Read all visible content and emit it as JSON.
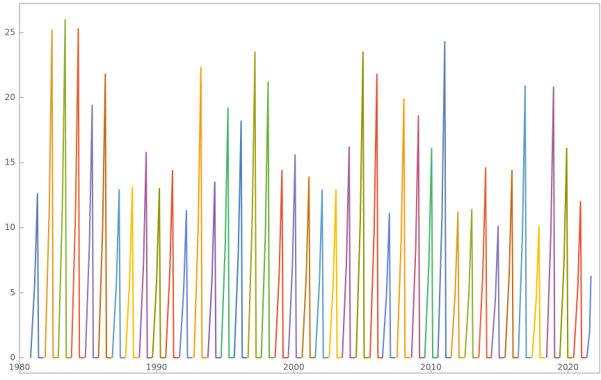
{
  "chart_data": {
    "type": "line",
    "xlim": [
      1980,
      2022.3
    ],
    "ylim": [
      -1.18,
      27.24
    ],
    "xticks": [
      1980,
      1990,
      2000,
      2010,
      2020
    ],
    "yticks": [
      0,
      5,
      10,
      15,
      20,
      25
    ],
    "grid": false,
    "series": [
      {
        "color": "#5e81b5",
        "x": [
          1980.81,
          1981.11,
          1981.31,
          1981.39,
          1981.76
        ],
        "values": [
          0,
          5.7,
          12.6,
          0,
          0
        ]
      },
      {
        "color": "#e19c24",
        "x": [
          1981.87,
          1982.17,
          1982.37,
          1982.45,
          1982.82
        ],
        "values": [
          0,
          11.3,
          25.2,
          0,
          0
        ]
      },
      {
        "color": "#8fb032",
        "x": [
          1982.83,
          1983.13,
          1983.33,
          1983.41,
          1983.78
        ],
        "values": [
          0,
          11.7,
          26,
          0,
          0
        ]
      },
      {
        "color": "#eb6235",
        "x": [
          1983.79,
          1984.09,
          1984.29,
          1984.37,
          1984.74
        ],
        "values": [
          0,
          11.4,
          25.3,
          0,
          0
        ]
      },
      {
        "color": "#8778b3",
        "x": [
          1984.8,
          1985.1,
          1985.3,
          1985.38,
          1985.75
        ],
        "values": [
          0,
          8.7,
          19.4,
          0,
          0
        ]
      },
      {
        "color": "#c56e1a",
        "x": [
          1985.76,
          1986.06,
          1986.26,
          1986.34,
          1986.71
        ],
        "values": [
          0,
          9.8,
          21.8,
          0,
          0
        ]
      },
      {
        "color": "#5d9ec7",
        "x": [
          1986.77,
          1987.07,
          1987.27,
          1987.35,
          1987.72
        ],
        "values": [
          0,
          5.8,
          12.9,
          0,
          0
        ]
      },
      {
        "color": "#ffbf00",
        "x": [
          1987.73,
          1988.03,
          1988.23,
          1988.31,
          1988.68
        ],
        "values": [
          0,
          5.9,
          13.1,
          0,
          0
        ]
      },
      {
        "color": "#a5609d",
        "x": [
          1988.74,
          1989.04,
          1989.24,
          1989.32,
          1989.69
        ],
        "values": [
          0,
          7.1,
          15.8,
          0,
          0
        ]
      },
      {
        "color": "#929600",
        "x": [
          1989.7,
          1990,
          1990.2,
          1990.28,
          1990.65
        ],
        "values": [
          0,
          5.9,
          13,
          0,
          0
        ]
      },
      {
        "color": "#e95536",
        "x": [
          1990.66,
          1990.96,
          1991.16,
          1991.24,
          1991.61
        ],
        "values": [
          0,
          6.5,
          14.4,
          0,
          0
        ]
      },
      {
        "color": "#6685d9",
        "x": [
          1991.67,
          1991.97,
          1992.17,
          1992.25,
          1992.62
        ],
        "values": [
          0,
          5.1,
          11.3,
          0,
          0
        ]
      },
      {
        "color": "#f89f13",
        "x": [
          1992.73,
          1993.03,
          1993.23,
          1993.31,
          1993.68
        ],
        "values": [
          0,
          10,
          22.3,
          0,
          0
        ]
      },
      {
        "color": "#8c62a8",
        "x": [
          1993.74,
          1994.04,
          1994.24,
          1994.32,
          1994.69
        ],
        "values": [
          0,
          6.1,
          13.5,
          0,
          0
        ]
      },
      {
        "color": "#47b66d",
        "x": [
          1994.7,
          1995,
          1995.2,
          1995.28,
          1995.65
        ],
        "values": [
          0,
          8.6,
          19.2,
          0,
          0
        ]
      },
      {
        "color": "#4d7fc0",
        "x": [
          1995.66,
          1995.96,
          1996.16,
          1996.24,
          1996.61
        ],
        "values": [
          0,
          8.2,
          18.2,
          0,
          0
        ]
      },
      {
        "color": "#a3a21a",
        "x": [
          1996.67,
          1996.97,
          1997.17,
          1997.25,
          1997.62
        ],
        "values": [
          0,
          10.6,
          23.5,
          0,
          0
        ]
      },
      {
        "color": "#6bb33c",
        "x": [
          1997.63,
          1997.93,
          1998.13,
          1998.21,
          1998.58
        ],
        "values": [
          0,
          9.5,
          21.2,
          0,
          0
        ]
      },
      {
        "color": "#e95536",
        "x": [
          1998.64,
          1998.94,
          1999.14,
          1999.22,
          1999.59
        ],
        "values": [
          0,
          6.5,
          14.4,
          0,
          0
        ]
      },
      {
        "color": "#8778b3",
        "x": [
          1999.6,
          1999.9,
          2000.1,
          2000.18,
          2000.55
        ],
        "values": [
          0,
          7,
          15.6,
          0,
          0
        ]
      },
      {
        "color": "#c57a1a",
        "x": [
          2000.61,
          2000.91,
          2001.11,
          2001.19,
          2001.56
        ],
        "values": [
          0,
          6.3,
          13.9,
          0,
          0
        ]
      },
      {
        "color": "#5d9ec7",
        "x": [
          2001.57,
          2001.87,
          2002.07,
          2002.15,
          2002.52
        ],
        "values": [
          0,
          5.8,
          12.9,
          0,
          0
        ]
      },
      {
        "color": "#ffbf00",
        "x": [
          2002.58,
          2002.88,
          2003.08,
          2003.16,
          2003.53
        ],
        "values": [
          0,
          5.8,
          12.9,
          0,
          0
        ]
      },
      {
        "color": "#a5609d",
        "x": [
          2003.54,
          2003.84,
          2004.04,
          2004.12,
          2004.49
        ],
        "values": [
          0,
          7.3,
          16.2,
          0,
          0
        ]
      },
      {
        "color": "#929600",
        "x": [
          2004.55,
          2004.85,
          2005.05,
          2005.13,
          2005.5
        ],
        "values": [
          0,
          10.6,
          23.5,
          0,
          0
        ]
      },
      {
        "color": "#e95536",
        "x": [
          2005.56,
          2005.86,
          2006.06,
          2006.14,
          2006.51
        ],
        "values": [
          0,
          9.8,
          21.8,
          0,
          0
        ]
      },
      {
        "color": "#6685d9",
        "x": [
          2006.47,
          2006.77,
          2006.97,
          2007.05,
          2007.42
        ],
        "values": [
          0,
          5,
          11.1,
          0,
          0
        ]
      },
      {
        "color": "#f89f13",
        "x": [
          2007.53,
          2007.83,
          2008.03,
          2008.11,
          2008.48
        ],
        "values": [
          0,
          9,
          19.9,
          0,
          0
        ]
      },
      {
        "color": "#bc5b80",
        "x": [
          2008.59,
          2008.89,
          2009.09,
          2009.17,
          2009.54
        ],
        "values": [
          0,
          8.4,
          18.6,
          0,
          0
        ]
      },
      {
        "color": "#47b66d",
        "x": [
          2009.55,
          2009.85,
          2010.05,
          2010.13,
          2010.5
        ],
        "values": [
          0,
          7.2,
          16.1,
          0,
          0
        ]
      },
      {
        "color": "#5e81b5",
        "x": [
          2010.51,
          2010.81,
          2011.01,
          2011.09,
          2011.46
        ],
        "values": [
          0,
          10.9,
          24.3,
          0,
          0
        ]
      },
      {
        "color": "#e19c24",
        "x": [
          2011.47,
          2011.77,
          2011.97,
          2012.05,
          2012.42
        ],
        "values": [
          0,
          5,
          11.2,
          0,
          0
        ]
      },
      {
        "color": "#8fb032",
        "x": [
          2012.48,
          2012.78,
          2012.98,
          2013.06,
          2013.43
        ],
        "values": [
          0,
          5.1,
          11.4,
          0,
          0
        ]
      },
      {
        "color": "#eb6235",
        "x": [
          2013.49,
          2013.79,
          2013.99,
          2014.07,
          2014.44
        ],
        "values": [
          0,
          6.6,
          14.6,
          0,
          0
        ]
      },
      {
        "color": "#8778b3",
        "x": [
          2014.4,
          2014.7,
          2014.9,
          2014.98,
          2015.35
        ],
        "values": [
          0,
          4.5,
          10.1,
          0,
          0
        ]
      },
      {
        "color": "#c56e1a",
        "x": [
          2015.41,
          2015.71,
          2015.91,
          2015.99,
          2016.36
        ],
        "values": [
          0,
          6.5,
          14.4,
          0,
          0
        ]
      },
      {
        "color": "#5d9ec7",
        "x": [
          2016.37,
          2016.67,
          2016.87,
          2016.95,
          2017.32
        ],
        "values": [
          0,
          9.4,
          20.9,
          0,
          0
        ]
      },
      {
        "color": "#ffbf00",
        "x": [
          2017.38,
          2017.68,
          2017.88,
          2017.96,
          2018.33
        ],
        "values": [
          0,
          4.5,
          10.1,
          0,
          0
        ]
      },
      {
        "color": "#a5609d",
        "x": [
          2018.44,
          2018.74,
          2018.94,
          2019.02,
          2019.39
        ],
        "values": [
          0,
          9.4,
          20.8,
          0,
          0
        ]
      },
      {
        "color": "#929600",
        "x": [
          2019.4,
          2019.7,
          2019.9,
          2019.98,
          2020.35
        ],
        "values": [
          0,
          7.2,
          16.1,
          0,
          0
        ]
      },
      {
        "color": "#e95536",
        "x": [
          2020.41,
          2020.71,
          2020.91,
          2020.99,
          2021.36
        ],
        "values": [
          0,
          5.4,
          12,
          0,
          0
        ]
      },
      {
        "color": "#6685d9",
        "x": [
          2021.37,
          2021.57,
          2021.67
        ],
        "values": [
          0,
          2,
          6.3
        ]
      }
    ]
  }
}
